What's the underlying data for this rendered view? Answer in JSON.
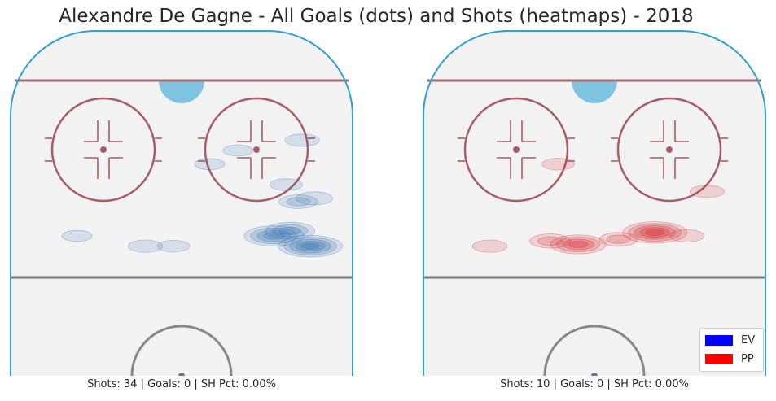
{
  "title": "Alexandre De Gagne - All Goals (dots) and Shots (heatmaps) - 2018",
  "legend": [
    {
      "label": "EV",
      "color": "#0000ff"
    },
    {
      "label": "PP",
      "color": "#ff0000"
    }
  ],
  "colors": {
    "ice": "#f2f2f2",
    "boards": "#2f9fd0",
    "blue_line": "#a46a6e",
    "faceoff_circle": "#a85c63",
    "center_line": "#777777",
    "goal_crease": "#7ec3e0",
    "center_circle": "#888888",
    "ev_heat": "#3572b2",
    "pp_heat": "#d6272d"
  },
  "chart_data": [
    {
      "type": "heatmap",
      "panel": "EV",
      "caption": "Shots: 34 | Goals: 0 | SH Pct: 0.00%",
      "shots": 34,
      "goals": 0,
      "sh_pct": "0.00%",
      "coordinate_system": "rink feet, x = lateral (-42.5 to 42.5), y = distance from end boards (0 to 100)",
      "xlim": [
        -42.5,
        42.5
      ],
      "ylim": [
        0,
        100
      ],
      "goal_points": [],
      "shot_density": [
        {
          "x": 32,
          "y": 63,
          "intensity": 0.9
        },
        {
          "x": 23,
          "y": 60,
          "intensity": 0.8
        },
        {
          "x": 27,
          "y": 58.5,
          "intensity": 0.55
        },
        {
          "x": 29,
          "y": 50,
          "intensity": 0.3
        },
        {
          "x": 33,
          "y": 49,
          "intensity": 0.25
        },
        {
          "x": 30,
          "y": 32,
          "intensity": 0.2
        },
        {
          "x": 26,
          "y": 45,
          "intensity": 0.15
        },
        {
          "x": -9,
          "y": 63,
          "intensity": 0.2
        },
        {
          "x": -2,
          "y": 63,
          "intensity": 0.15
        },
        {
          "x": 7,
          "y": 39,
          "intensity": 0.1
        },
        {
          "x": 14,
          "y": 35,
          "intensity": 0.1
        },
        {
          "x": -26,
          "y": 60,
          "intensity": 0.1
        }
      ]
    },
    {
      "type": "heatmap",
      "panel": "PP",
      "caption": "Shots: 10 | Goals: 0 | SH Pct: 0.00%",
      "shots": 10,
      "goals": 0,
      "sh_pct": "0.00%",
      "coordinate_system": "rink feet, x = lateral (-42.5 to 42.5), y = distance from end boards (0 to 100)",
      "xlim": [
        -42.5,
        42.5
      ],
      "ylim": [
        0,
        100
      ],
      "goal_points": [],
      "shot_density": [
        {
          "x": 15,
          "y": 59,
          "intensity": 0.9
        },
        {
          "x": -4,
          "y": 62.5,
          "intensity": 0.7
        },
        {
          "x": -11,
          "y": 61.5,
          "intensity": 0.35
        },
        {
          "x": 6,
          "y": 61,
          "intensity": 0.3
        },
        {
          "x": -26,
          "y": 63,
          "intensity": 0.2
        },
        {
          "x": 28,
          "y": 47,
          "intensity": 0.2
        },
        {
          "x": -9,
          "y": 39,
          "intensity": 0.15
        },
        {
          "x": 23,
          "y": 60,
          "intensity": 0.2
        }
      ]
    }
  ]
}
